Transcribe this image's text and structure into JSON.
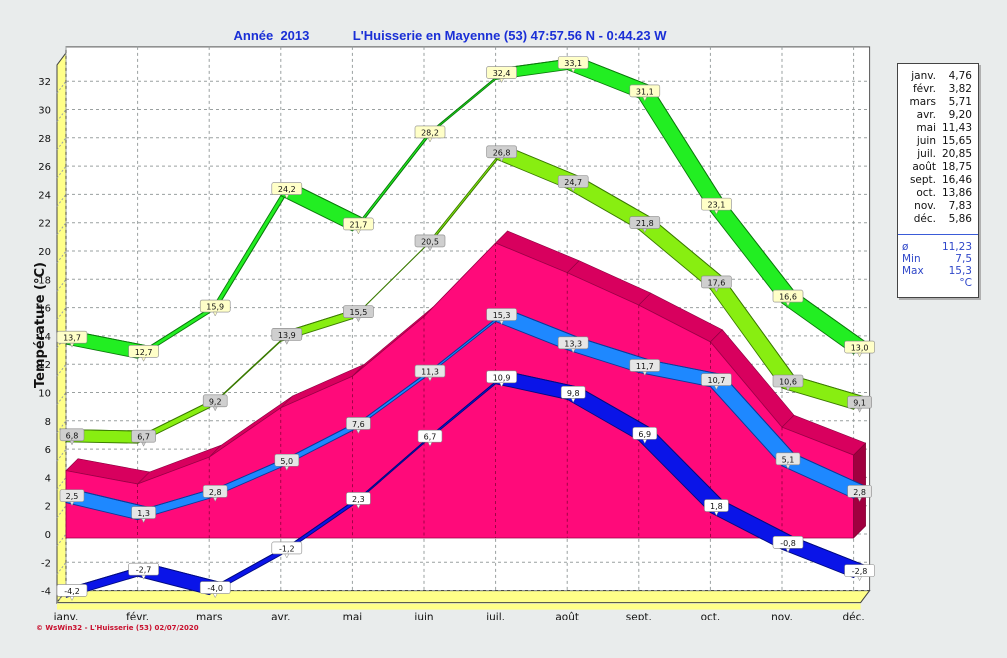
{
  "header": {
    "year_label": "Année  2013",
    "location_label": "L'Huisserie en Mayenne (53) 47:57.56 N - 0:44.23 W"
  },
  "footer": {
    "credit": "© WsWin32 - L'Huisserie (53)  02/07/2020"
  },
  "legend": {
    "rows": [
      {
        "month": "janv.",
        "value": "4,76"
      },
      {
        "month": "févr.",
        "value": "3,82"
      },
      {
        "month": "mars",
        "value": "5,71"
      },
      {
        "month": "avr.",
        "value": "9,20"
      },
      {
        "month": "mai",
        "value": "11,43"
      },
      {
        "month": "juin",
        "value": "15,65"
      },
      {
        "month": "juil.",
        "value": "20,85"
      },
      {
        "month": "août",
        "value": "18,75"
      },
      {
        "month": "sept.",
        "value": "16,46"
      },
      {
        "month": "oct.",
        "value": "13,86"
      },
      {
        "month": "nov.",
        "value": "7,83"
      },
      {
        "month": "déc.",
        "value": "5,86"
      }
    ],
    "stats": [
      {
        "label": "ø",
        "value": "11,23"
      },
      {
        "label": "Min",
        "value": "7,5"
      },
      {
        "label": "Max",
        "value": "15,3"
      }
    ],
    "unit": "°C"
  },
  "colors": {
    "monthly_area": "#ff0a7a",
    "abs_max": "#22ee22",
    "mean_max": "#88ee11",
    "mean_min": "#1e88ff",
    "abs_min": "#0a14e8",
    "title": "#1a2fd6",
    "floor": "#ffff88"
  },
  "chart_data": {
    "type": "area",
    "ylabel": "Température  (°C)",
    "ylim": [
      -4,
      34
    ],
    "yticks": [
      "-4",
      "-2",
      "0",
      "2",
      "4",
      "6",
      "8",
      "10",
      "12",
      "14",
      "16",
      "18",
      "20",
      "22",
      "24",
      "26",
      "28",
      "30",
      "32"
    ],
    "categories": [
      "janv.",
      "févr.",
      "mars",
      "avr.",
      "mai",
      "juin",
      "juil.",
      "août",
      "sept.",
      "oct.",
      "nov.",
      "déc."
    ],
    "grid": true,
    "legend_position": "right",
    "series": [
      {
        "key": "area",
        "values": [
          4.76,
          3.82,
          5.71,
          9.2,
          11.43,
          15.65,
          20.85,
          18.75,
          16.46,
          13.86,
          7.83,
          5.86
        ]
      },
      {
        "key": "absmax",
        "values": [
          13.7,
          12.7,
          15.9,
          24.2,
          21.7,
          28.2,
          32.4,
          33.1,
          31.1,
          23.1,
          16.6,
          13.0
        ],
        "labels": [
          "13,7",
          "12,7",
          "15,9",
          "24,2",
          "21,7",
          "28,2",
          "32,4",
          "33,1",
          "31,1",
          "23,1",
          "16,6",
          "13,0"
        ]
      },
      {
        "key": "meanmax",
        "values": [
          6.8,
          6.7,
          9.2,
          13.9,
          15.5,
          20.5,
          26.8,
          24.7,
          21.8,
          17.6,
          10.6,
          9.1
        ],
        "labels": [
          "6,8",
          "6,7",
          "9,2",
          "13,9",
          "15,5",
          "20,5",
          "26,8",
          "24,7",
          "21,8",
          "17,6",
          "10,6",
          "9,1"
        ]
      },
      {
        "key": "meanmin",
        "values": [
          2.5,
          1.3,
          2.8,
          5.0,
          7.6,
          11.3,
          15.3,
          13.3,
          11.7,
          10.7,
          5.1,
          2.8
        ],
        "labels": [
          "2,5",
          "1,3",
          "2,8",
          "5,0",
          "7,6",
          "11,3",
          "15,3",
          "13,3",
          "11,7",
          "10,7",
          "5,1",
          "2,8"
        ]
      },
      {
        "key": "absmin",
        "values": [
          -4.2,
          -2.7,
          -4.0,
          -1.2,
          2.3,
          6.7,
          10.9,
          9.8,
          6.9,
          1.8,
          -0.8,
          -2.8
        ],
        "labels": [
          "-4,2",
          "-2,7",
          "-4,0",
          "-1,2",
          "2,3",
          "6,7",
          "10,9",
          "9,8",
          "6,9",
          "1,8",
          "-0,8",
          "-2,8"
        ]
      }
    ]
  }
}
